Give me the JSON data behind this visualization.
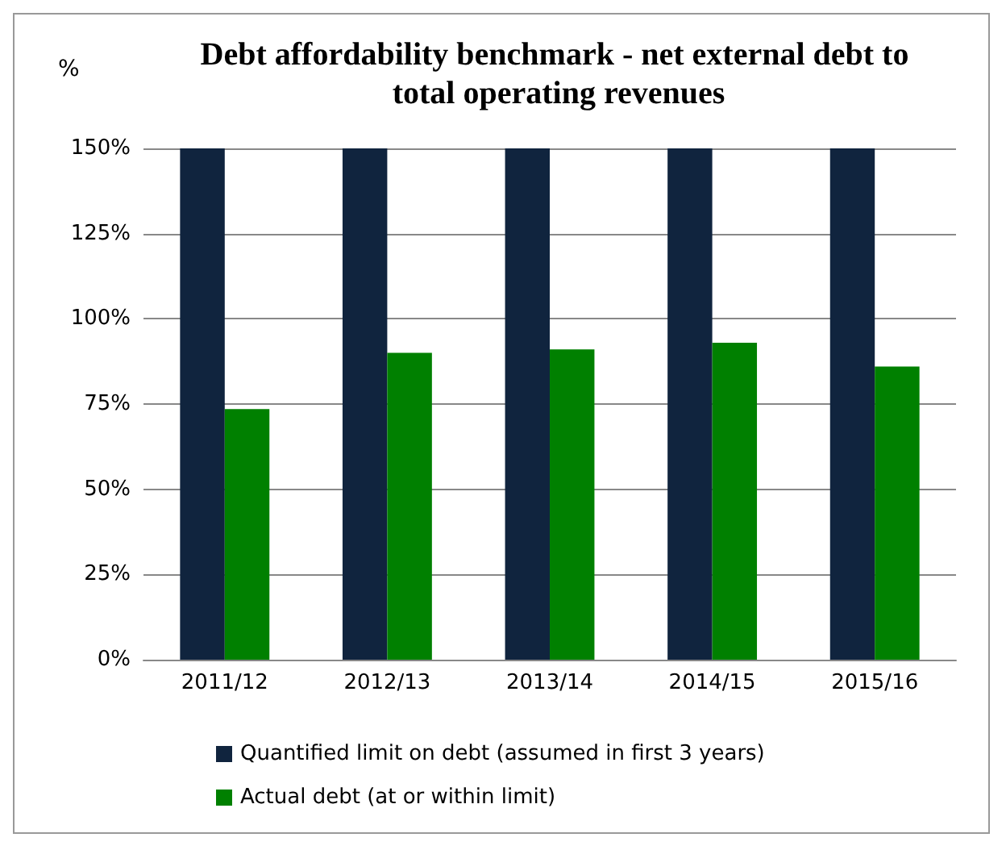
{
  "chart_data": {
    "type": "bar",
    "title": "Debt affordability benchmark - net external debt to total operating revenues",
    "ylabel": "%",
    "categories": [
      "2011/12",
      "2012/13",
      "2013/14",
      "2014/15",
      "2015/16"
    ],
    "series": [
      {
        "name": "Quantified limit on debt (assumed in first 3 years)",
        "color": "#10243e",
        "values": [
          150,
          150,
          150,
          150,
          150
        ]
      },
      {
        "name": "Actual debt (at or within limit)",
        "color": "#008000",
        "values": [
          73.5,
          90,
          91,
          93,
          86
        ]
      }
    ],
    "ylim": [
      0,
      150
    ],
    "yticks": [
      {
        "value": 0,
        "label": "0%"
      },
      {
        "value": 25,
        "label": "25%"
      },
      {
        "value": 50,
        "label": "50%"
      },
      {
        "value": 75,
        "label": "75%"
      },
      {
        "value": 100,
        "label": "100%"
      },
      {
        "value": 125,
        "label": "125%"
      },
      {
        "value": 150,
        "label": "150%"
      }
    ],
    "grid": "y",
    "legend": "bottom"
  }
}
